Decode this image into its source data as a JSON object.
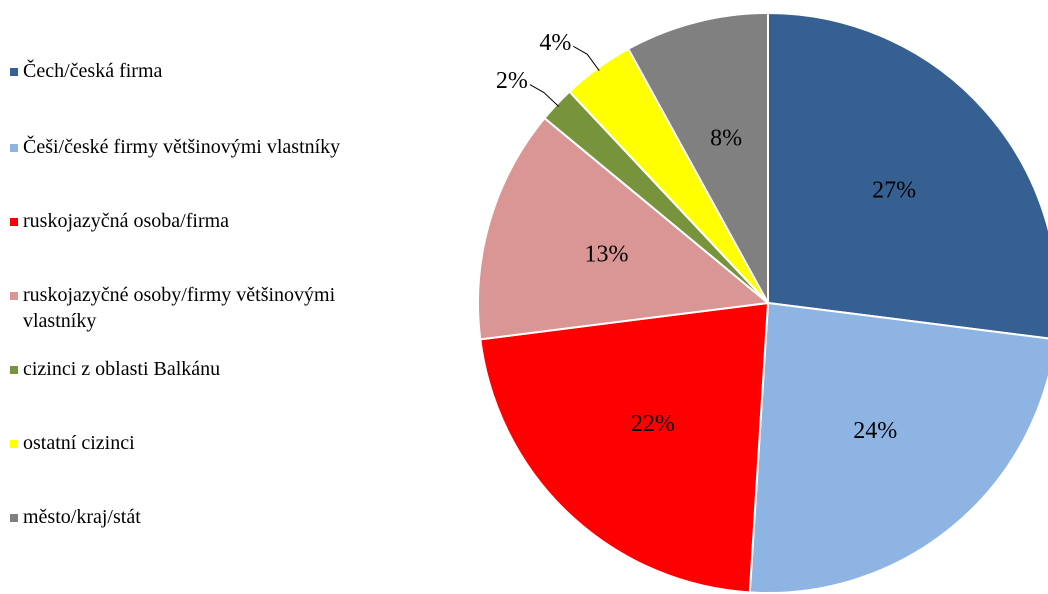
{
  "chart_data": {
    "type": "pie",
    "categories": [
      "Čech/česká firma",
      "Češi/české firmy většinovými vlastníky",
      "ruskojazyčná osoba/firma",
      "ruskojazyčné osoby/firmy většinovými vlastníky",
      "cizinci z oblasti Balkánu",
      "ostatní cizinci",
      "město/kraj/stát"
    ],
    "values": [
      27,
      24,
      22,
      13,
      2,
      4,
      8
    ],
    "value_labels": [
      "27%",
      "24%",
      "22%",
      "13%",
      "2%",
      "4%",
      "8%"
    ],
    "colors": [
      "#376092",
      "#8eb4e3",
      "#ff0000",
      "#d99694",
      "#77933c",
      "#ffff00",
      "#808080"
    ],
    "legend": "left"
  }
}
